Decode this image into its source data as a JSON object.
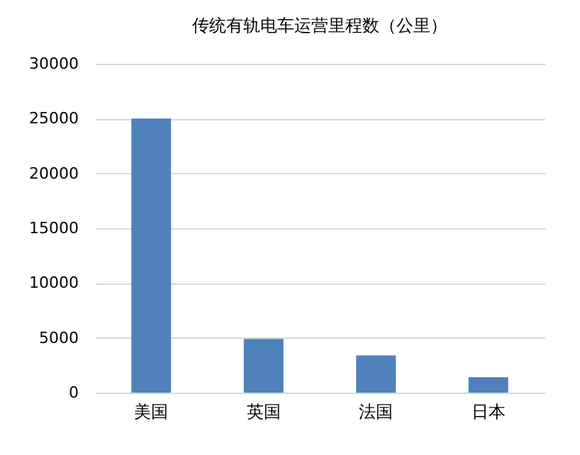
{
  "chart_data": {
    "type": "bar",
    "title": "传统有轨电车运营里程数（公里）",
    "categories": [
      "美国",
      "英国",
      "法国",
      "日本"
    ],
    "values": [
      25000,
      4900,
      3400,
      1400
    ],
    "color": "#4f81bd",
    "ylim": [
      0,
      30000
    ],
    "yticks": [
      0,
      5000,
      10000,
      15000,
      20000,
      25000,
      30000
    ],
    "grid": "y"
  }
}
